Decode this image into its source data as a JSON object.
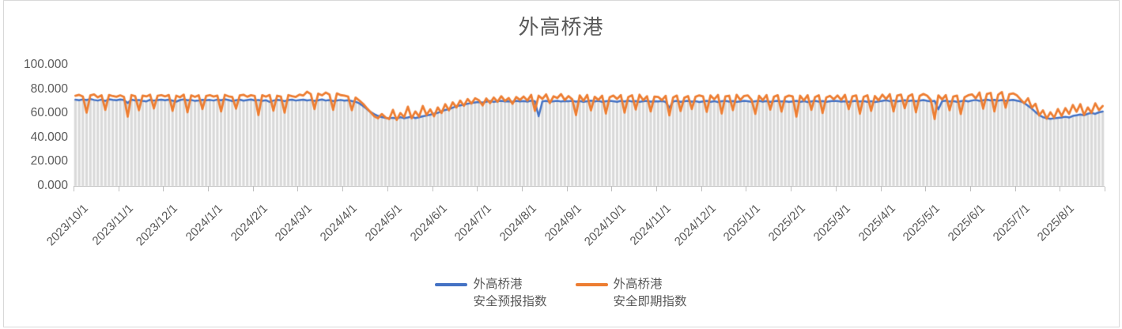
{
  "page": {
    "border_color": "#d9d9d9",
    "background": "#ffffff"
  },
  "legend": {
    "items": [
      {
        "line1": "外高桥港",
        "line2": "安全预报指数",
        "color": "#4472C4"
      },
      {
        "line1": "外高桥港",
        "line2": "安全即期指数",
        "color": "#ED7D31"
      }
    ]
  },
  "chart_data": {
    "type": "line",
    "title": "外高桥港",
    "title_color": "#595959",
    "xlabel": "",
    "ylabel": "",
    "ylim": [
      0,
      100
    ],
    "y_tick_labels": [
      "100.000",
      "80.000",
      "60.000",
      "40.000",
      "20.000",
      "0.000"
    ],
    "y_tick_values": [
      100,
      80,
      60,
      40,
      20,
      0
    ],
    "x_tick_labels": [
      "2023/10/1",
      "2023/11/1",
      "2023/12/1",
      "2024/1/1",
      "2024/2/1",
      "2024/3/1",
      "2024/4/1",
      "2024/5/1",
      "2024/6/1",
      "2024/7/1",
      "2024/8/1",
      "2024/9/1",
      "2024/10/1",
      "2024/11/1",
      "2024/12/1",
      "2025/1/1",
      "2025/2/1",
      "2025/3/1",
      "2025/4/1",
      "2025/5/1",
      "2025/6/1",
      "2025/7/1",
      "2025/8/1"
    ],
    "x_label_rotation": -45,
    "grid": false,
    "legend_position": "bottom-center",
    "points_per_month": 12,
    "n_points": 276,
    "background_bars": {
      "color": "#d9d9d9",
      "note": "dense daily gray columns behind the lines; height tracks the forecast series"
    },
    "series": [
      {
        "name": "外高桥港 安全预报指数",
        "color": "#4472C4",
        "values": [
          71.2,
          70.8,
          71.5,
          70.9,
          71.8,
          71.0,
          70.5,
          71.3,
          70.2,
          71.6,
          71.1,
          70.7,
          71.4,
          70.9,
          68.5,
          71.2,
          70.6,
          71.0,
          70.3,
          69.8,
          71.1,
          70.5,
          70.9,
          71.3,
          70.8,
          71.2,
          70.4,
          69.6,
          70.9,
          71.5,
          70.7,
          71.0,
          70.2,
          70.6,
          71.1,
          70.8,
          71.0,
          70.5,
          71.3,
          70.8,
          71.6,
          70.9,
          70.1,
          70.7,
          71.2,
          70.4,
          70.9,
          71.4,
          70.6,
          71.0,
          70.3,
          70.8,
          69.4,
          70.5,
          71.1,
          70.7,
          70.0,
          70.9,
          71.2,
          70.5,
          70.9,
          71.3,
          70.6,
          71.0,
          70.2,
          70.8,
          71.4,
          70.5,
          70.9,
          70.1,
          70.6,
          71.0,
          70.4,
          70.8,
          70.1,
          69.5,
          68.2,
          66.0,
          63.5,
          61.0,
          59.2,
          57.8,
          56.9,
          56.2,
          55.8,
          56.3,
          55.5,
          56.8,
          55.9,
          56.5,
          57.2,
          56.0,
          56.7,
          57.5,
          58.1,
          58.8,
          59.6,
          60.4,
          61.5,
          62.8,
          63.4,
          64.6,
          65.8,
          66.5,
          67.2,
          67.9,
          68.4,
          68.9,
          69.3,
          68.8,
          69.6,
          70.1,
          69.4,
          69.9,
          70.3,
          69.7,
          70.0,
          69.5,
          70.2,
          69.8,
          70.1,
          69.6,
          70.4,
          69.9,
          57.5,
          69.8,
          70.2,
          69.5,
          70.0,
          70.3,
          69.7,
          70.1,
          69.9,
          70.3,
          69.6,
          70.1,
          69.4,
          70.0,
          70.4,
          69.8,
          70.2,
          69.5,
          69.9,
          70.3,
          70.0,
          69.5,
          70.2,
          69.8,
          70.4,
          69.7,
          70.1,
          69.4,
          69.9,
          70.3,
          69.6,
          70.0,
          69.7,
          70.1,
          69.4,
          64.5,
          69.8,
          70.2,
          69.5,
          69.9,
          70.3,
          69.6,
          70.0,
          69.3,
          69.8,
          70.2,
          69.5,
          70.0,
          69.3,
          69.9,
          70.3,
          69.6,
          70.1,
          69.4,
          69.8,
          70.2,
          70.0,
          69.4,
          69.9,
          70.3,
          69.6,
          70.1,
          69.5,
          69.9,
          70.2,
          69.7,
          70.0,
          69.4,
          69.8,
          70.2,
          69.5,
          70.0,
          69.3,
          69.8,
          70.2,
          69.6,
          70.1,
          69.4,
          69.9,
          70.3,
          70.1,
          69.6,
          70.0,
          69.4,
          69.9,
          70.3,
          69.7,
          70.1,
          69.5,
          70.0,
          69.3,
          69.8,
          70.2,
          70.7,
          70.0,
          70.5,
          69.8,
          70.3,
          70.8,
          70.1,
          70.6,
          69.9,
          70.4,
          70.9,
          70.3,
          69.8,
          70.2,
          63.2,
          69.9,
          70.4,
          69.7,
          70.1,
          69.5,
          70.0,
          70.4,
          69.8,
          70.5,
          71.0,
          70.3,
          70.8,
          71.2,
          70.6,
          71.1,
          70.4,
          70.9,
          70.2,
          70.7,
          71.1,
          70.4,
          69.8,
          68.5,
          66.2,
          63.8,
          61.0,
          58.5,
          56.8,
          55.9,
          55.4,
          55.8,
          56.2,
          56.6,
          57.1,
          56.5,
          57.8,
          58.4,
          59.0,
          58.3,
          59.6,
          60.2,
          59.5,
          60.8,
          61.4
        ]
      },
      {
        "name": "外高桥港 安全即期指数",
        "color": "#ED7D31",
        "values": [
          74.5,
          75.2,
          73.8,
          60.5,
          74.8,
          75.5,
          73.2,
          74.9,
          62.8,
          75.1,
          74.2,
          73.6,
          74.8,
          73.5,
          57.2,
          75.0,
          74.1,
          62.5,
          74.6,
          73.9,
          75.3,
          64.0,
          74.4,
          75.0,
          73.9,
          75.1,
          62.0,
          74.5,
          73.2,
          75.4,
          60.8,
          74.8,
          73.5,
          74.9,
          63.5,
          74.2,
          75.0,
          73.8,
          74.6,
          61.5,
          75.2,
          74.0,
          73.4,
          63.8,
          74.7,
          75.3,
          73.6,
          74.9,
          74.3,
          58.5,
          74.9,
          73.7,
          75.1,
          62.2,
          74.5,
          73.8,
          60.5,
          75.0,
          74.1,
          73.5,
          75.4,
          74.6,
          77.8,
          75.9,
          63.5,
          76.2,
          74.8,
          77.1,
          75.5,
          62.8,
          76.4,
          75.0,
          74.6,
          73.8,
          62.5,
          72.9,
          70.5,
          67.8,
          64.2,
          60.9,
          57.5,
          55.8,
          59.4,
          56.6,
          55.2,
          62.8,
          54.5,
          60.2,
          56.8,
          65.4,
          55.9,
          61.5,
          57.3,
          66.0,
          58.6,
          63.2,
          57.5,
          64.8,
          60.2,
          67.5,
          62.4,
          69.0,
          64.8,
          70.5,
          66.2,
          71.8,
          68.0,
          72.4,
          70.8,
          66.5,
          72.2,
          68.4,
          73.0,
          69.5,
          74.1,
          70.2,
          72.6,
          67.8,
          73.4,
          71.0,
          73.8,
          70.5,
          75.2,
          62.0,
          74.5,
          71.8,
          75.6,
          68.4,
          74.0,
          72.5,
          75.8,
          70.9,
          74.2,
          71.5,
          58.5,
          74.8,
          70.2,
          75.1,
          62.4,
          73.6,
          71.0,
          74.5,
          59.8,
          73.2,
          74.6,
          71.8,
          75.0,
          60.5,
          73.4,
          74.9,
          63.2,
          75.3,
          70.8,
          74.1,
          61.5,
          73.8,
          73.5,
          70.8,
          74.4,
          58.2,
          73.0,
          74.6,
          61.8,
          72.8,
          74.2,
          63.5,
          73.6,
          74.8,
          74.0,
          61.2,
          74.7,
          71.5,
          75.1,
          59.8,
          73.9,
          74.5,
          62.6,
          75.2,
          71.0,
          74.3,
          74.8,
          71.2,
          59.5,
          74.4,
          70.8,
          75.0,
          63.0,
          73.7,
          74.9,
          61.4,
          73.3,
          74.6,
          73.9,
          57.2,
          74.5,
          70.5,
          74.9,
          62.8,
          73.4,
          74.8,
          60.2,
          73.0,
          74.4,
          71.6,
          74.7,
          71.0,
          75.2,
          63.4,
          74.0,
          74.8,
          59.6,
          73.5,
          74.9,
          62.0,
          74.2,
          70.6,
          75.3,
          71.8,
          75.8,
          61.5,
          74.6,
          75.4,
          64.2,
          74.0,
          75.6,
          60.8,
          74.4,
          75.9,
          74.5,
          70.9,
          55.2,
          74.8,
          71.4,
          75.0,
          62.5,
          73.8,
          74.6,
          59.4,
          73.2,
          74.9,
          75.6,
          72.4,
          77.2,
          63.8,
          75.9,
          76.8,
          61.5,
          75.2,
          77.5,
          64.6,
          75.8,
          76.4,
          74.8,
          71.5,
          68.2,
          72.4,
          64.5,
          67.8,
          58.2,
          62.4,
          55.6,
          60.8,
          56.4,
          63.5,
          57.8,
          64.2,
          59.5,
          66.8,
          61.2,
          67.5,
          58.6,
          64.8,
          60.4,
          68.2,
          62.6,
          66.0
        ]
      }
    ]
  }
}
